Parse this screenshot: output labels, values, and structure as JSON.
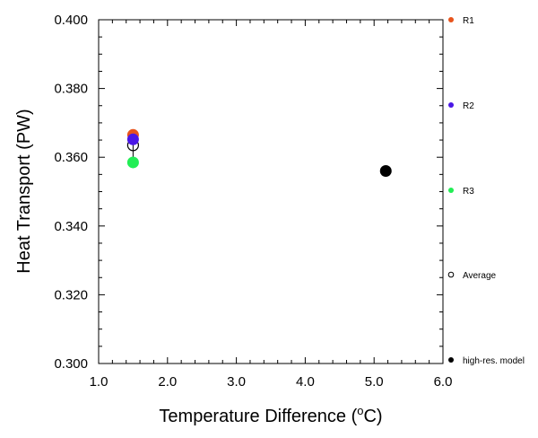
{
  "chart_data": {
    "type": "scatter",
    "xlabel": "Temperature Difference (",
    "xlabel_super": "o",
    "xlabel_unit": "C)",
    "ylabel": "Heat Transport (PW)",
    "xlim": [
      1.0,
      6.0
    ],
    "ylim": [
      0.3,
      0.4
    ],
    "x_ticks": [
      "1.0",
      "2.0",
      "3.0",
      "4.0",
      "5.0",
      "6.0"
    ],
    "y_ticks": [
      "0.300",
      "0.320",
      "0.340",
      "0.360",
      "0.380",
      "0.400"
    ],
    "grid": false,
    "legend_position": "right",
    "series": [
      {
        "name": "R1",
        "color": "#e8541c",
        "x": [
          1.5
        ],
        "y": [
          0.3665
        ],
        "marker": "filled-circle"
      },
      {
        "name": "R2",
        "color": "#4a17e6",
        "x": [
          1.5
        ],
        "y": [
          0.3652
        ],
        "marker": "filled-circle"
      },
      {
        "name": "R3",
        "color": "#22ee55",
        "x": [
          1.5
        ],
        "y": [
          0.3585
        ],
        "marker": "filled-circle"
      },
      {
        "name": "Average",
        "color": "#000000",
        "x": [
          1.5
        ],
        "y": [
          0.3635
        ],
        "marker": "open-circle",
        "error": [
          0.3585,
          0.3665
        ]
      },
      {
        "name": "high-res. model",
        "color": "#000000",
        "x": [
          5.17
        ],
        "y": [
          0.356
        ],
        "marker": "filled-circle"
      }
    ]
  }
}
